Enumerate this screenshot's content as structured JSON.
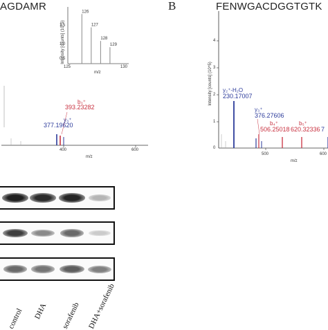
{
  "panel_a": {
    "title": "AGDAMR",
    "inset": {
      "ylabel": "Intensity [counts] (10^5)",
      "xlabel": "m/z",
      "y_ticks": [
        "1.5",
        "1.0",
        "0.5"
      ],
      "x_ticks": [
        "125",
        "130"
      ],
      "peaks": [
        {
          "label": "126",
          "mz": 126.0,
          "intensity": 1.75
        },
        {
          "label": "127",
          "mz": 127.0,
          "intensity": 1.28
        },
        {
          "label": "128",
          "mz": 128.0,
          "intensity": 0.8
        },
        {
          "label": "129",
          "mz": 129.0,
          "intensity": 0.58
        }
      ]
    },
    "main": {
      "xlabel": "m/z",
      "x_ticks": [
        "400",
        "600"
      ],
      "ion_labels": [
        {
          "ion": "b₃⁺",
          "value": "393.23282",
          "color": "#c8303f"
        },
        {
          "ion": "y₃⁺",
          "value": "377.19620",
          "color": "#2b3a9a"
        }
      ]
    }
  },
  "panel_b": {
    "letter": "B",
    "title": "FENWGACDGGTGTK",
    "ylabel": "Intensity [counts] (10^5)",
    "xlabel": "m/z",
    "y_ticks": [
      "4",
      "3",
      "2",
      "1",
      "0"
    ],
    "x_ticks": [
      "500",
      "600"
    ],
    "ion_labels": [
      {
        "ion": "y₂⁺-H₂O",
        "value": "230.17007",
        "color": "#2b3a9a"
      },
      {
        "ion": "y₃⁺",
        "value": "376.27606",
        "color": "#2b3a9a"
      },
      {
        "ion": "b₄⁺",
        "value": "506.25018",
        "color": "#c8303f"
      },
      {
        "ion": "b₅⁺",
        "value": "620.32336",
        "color": "#c8303f"
      },
      {
        "ion": "",
        "value": "7",
        "color": "#2b3a9a"
      }
    ]
  },
  "western_blot": {
    "lanes": [
      "control",
      "DHA",
      "sorafenib",
      "DHA+sorafenib"
    ],
    "rows": [
      {
        "intensities": [
          0.95,
          0.9,
          0.92,
          0.25
        ]
      },
      {
        "intensities": [
          0.8,
          0.45,
          0.6,
          0.15
        ]
      },
      {
        "intensities": [
          0.6,
          0.55,
          0.65,
          0.5
        ]
      }
    ]
  }
}
